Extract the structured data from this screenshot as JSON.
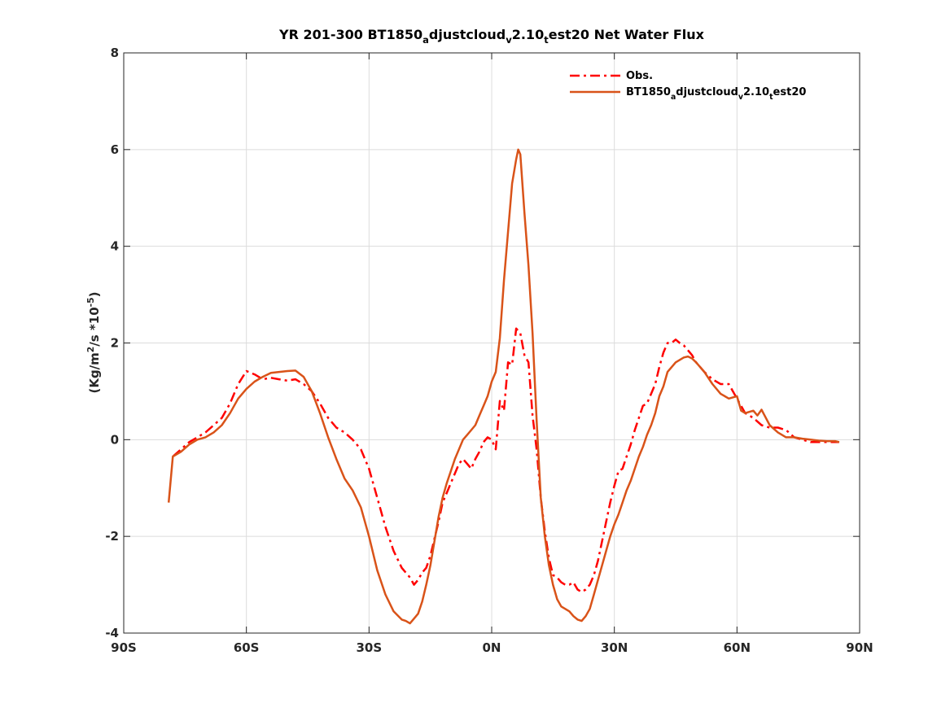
{
  "chart_data": {
    "type": "line",
    "title": {
      "prefix": "YR 201-300 BT1850",
      "parts": [
        {
          "text": "a",
          "sub": true
        },
        {
          "text": "djustcloud",
          "sub": false
        },
        {
          "text": "v",
          "sub": true
        },
        {
          "text": "2.10",
          "sub": false
        },
        {
          "text": "t",
          "sub": true
        },
        {
          "text": "est20  Net Water Flux",
          "sub": false
        }
      ]
    },
    "ylabel": {
      "parts": [
        {
          "text": "(Kg/m",
          "sup": false
        },
        {
          "text": "2",
          "sup": true
        },
        {
          "text": "/s *10",
          "sup": false
        },
        {
          "text": "-5",
          "sup": true
        },
        {
          "text": ")",
          "sup": false
        }
      ]
    },
    "xlim": [
      -90,
      90
    ],
    "ylim": [
      -4,
      8
    ],
    "x_ticks": [
      -90,
      -60,
      -30,
      0,
      30,
      60,
      90
    ],
    "x_tick_labels": [
      "90S",
      "60S",
      "30S",
      "0N",
      "30N",
      "60N",
      "90N"
    ],
    "y_ticks": [
      -4,
      -2,
      0,
      2,
      4,
      6,
      8
    ],
    "y_tick_labels": [
      "-4",
      "-2",
      "0",
      "2",
      "4",
      "6",
      "8"
    ],
    "grid": true,
    "legend_position": "top-right",
    "colors": {
      "obs": "#ff0000",
      "model": "#d95319",
      "axis": "#262626",
      "grid": "#dcdcdc"
    },
    "series": [
      {
        "name": "Obs.",
        "style": "dash-dot",
        "legend_parts": [
          {
            "text": "Obs.",
            "sub": false
          }
        ],
        "points": [
          [
            -78,
            -0.35
          ],
          [
            -76,
            -0.2
          ],
          [
            -74,
            -0.05
          ],
          [
            -72,
            0.05
          ],
          [
            -70,
            0.15
          ],
          [
            -68,
            0.3
          ],
          [
            -66,
            0.45
          ],
          [
            -64,
            0.75
          ],
          [
            -62,
            1.15
          ],
          [
            -60,
            1.42
          ],
          [
            -58,
            1.35
          ],
          [
            -56,
            1.25
          ],
          [
            -54,
            1.28
          ],
          [
            -52,
            1.25
          ],
          [
            -50,
            1.22
          ],
          [
            -48,
            1.25
          ],
          [
            -46,
            1.15
          ],
          [
            -44,
            1.0
          ],
          [
            -42,
            0.75
          ],
          [
            -40,
            0.45
          ],
          [
            -38,
            0.25
          ],
          [
            -36,
            0.15
          ],
          [
            -34,
            0.0
          ],
          [
            -32,
            -0.2
          ],
          [
            -30,
            -0.6
          ],
          [
            -28,
            -1.2
          ],
          [
            -26,
            -1.8
          ],
          [
            -24,
            -2.3
          ],
          [
            -22,
            -2.65
          ],
          [
            -20,
            -2.85
          ],
          [
            -19,
            -3.0
          ],
          [
            -18,
            -2.9
          ],
          [
            -17,
            -2.75
          ],
          [
            -16,
            -2.65
          ],
          [
            -15,
            -2.4
          ],
          [
            -14,
            -2.05
          ],
          [
            -13,
            -1.7
          ],
          [
            -12,
            -1.3
          ],
          [
            -11,
            -1.1
          ],
          [
            -10,
            -0.9
          ],
          [
            -9,
            -0.7
          ],
          [
            -8,
            -0.5
          ],
          [
            -7,
            -0.4
          ],
          [
            -6,
            -0.5
          ],
          [
            -5,
            -0.6
          ],
          [
            -4,
            -0.4
          ],
          [
            -3,
            -0.25
          ],
          [
            -2,
            -0.05
          ],
          [
            -1,
            0.05
          ],
          [
            0,
            0.0
          ],
          [
            1,
            -0.2
          ],
          [
            2,
            0.8
          ],
          [
            3,
            0.6
          ],
          [
            4,
            1.6
          ],
          [
            5,
            1.55
          ],
          [
            6,
            2.3
          ],
          [
            7,
            2.2
          ],
          [
            8,
            1.75
          ],
          [
            9,
            1.6
          ],
          [
            10,
            0.5
          ],
          [
            11,
            -0.2
          ],
          [
            12,
            -1.2
          ],
          [
            13,
            -1.9
          ],
          [
            14,
            -2.45
          ],
          [
            15,
            -2.8
          ],
          [
            16,
            -2.85
          ],
          [
            17,
            -2.95
          ],
          [
            18,
            -3.0
          ],
          [
            19,
            -3.0
          ],
          [
            20,
            -2.95
          ],
          [
            21,
            -3.1
          ],
          [
            22,
            -3.15
          ],
          [
            23,
            -3.1
          ],
          [
            24,
            -3.0
          ],
          [
            25,
            -2.8
          ],
          [
            26,
            -2.5
          ],
          [
            27,
            -2.1
          ],
          [
            28,
            -1.7
          ],
          [
            29,
            -1.3
          ],
          [
            30,
            -0.95
          ],
          [
            31,
            -0.65
          ],
          [
            32,
            -0.6
          ],
          [
            33,
            -0.35
          ],
          [
            34,
            -0.1
          ],
          [
            35,
            0.2
          ],
          [
            36,
            0.45
          ],
          [
            37,
            0.7
          ],
          [
            38,
            0.75
          ],
          [
            39,
            0.95
          ],
          [
            40,
            1.15
          ],
          [
            41,
            1.5
          ],
          [
            42,
            1.8
          ],
          [
            43,
            2.0
          ],
          [
            44,
            2.0
          ],
          [
            45,
            2.07
          ],
          [
            46,
            2.0
          ],
          [
            47,
            1.95
          ],
          [
            48,
            1.85
          ],
          [
            49,
            1.75
          ],
          [
            50,
            1.6
          ],
          [
            52,
            1.4
          ],
          [
            54,
            1.25
          ],
          [
            56,
            1.15
          ],
          [
            58,
            1.15
          ],
          [
            60,
            0.85
          ],
          [
            62,
            0.55
          ],
          [
            64,
            0.45
          ],
          [
            66,
            0.3
          ],
          [
            68,
            0.25
          ],
          [
            70,
            0.25
          ],
          [
            72,
            0.2
          ],
          [
            74,
            0.05
          ],
          [
            76,
            0.0
          ],
          [
            78,
            -0.05
          ],
          [
            80,
            -0.05
          ],
          [
            82,
            -0.05
          ],
          [
            84,
            -0.05
          ],
          [
            85,
            -0.05
          ]
        ]
      },
      {
        "name": "model",
        "style": "solid",
        "legend_parts": [
          {
            "text": "BT1850",
            "sub": false
          },
          {
            "text": "a",
            "sub": true
          },
          {
            "text": "djustcloud",
            "sub": false
          },
          {
            "text": "v",
            "sub": true
          },
          {
            "text": "2.10",
            "sub": false
          },
          {
            "text": "t",
            "sub": true
          },
          {
            "text": "est20",
            "sub": false
          }
        ],
        "points": [
          [
            -79,
            -1.3
          ],
          [
            -78,
            -0.35
          ],
          [
            -76,
            -0.25
          ],
          [
            -74,
            -0.1
          ],
          [
            -72,
            0.0
          ],
          [
            -70,
            0.05
          ],
          [
            -68,
            0.15
          ],
          [
            -66,
            0.3
          ],
          [
            -64,
            0.55
          ],
          [
            -62,
            0.85
          ],
          [
            -60,
            1.05
          ],
          [
            -58,
            1.2
          ],
          [
            -56,
            1.3
          ],
          [
            -54,
            1.38
          ],
          [
            -52,
            1.4
          ],
          [
            -50,
            1.42
          ],
          [
            -48,
            1.43
          ],
          [
            -46,
            1.3
          ],
          [
            -44,
            1.0
          ],
          [
            -42,
            0.55
          ],
          [
            -40,
            0.05
          ],
          [
            -38,
            -0.4
          ],
          [
            -36,
            -0.8
          ],
          [
            -34,
            -1.05
          ],
          [
            -32,
            -1.4
          ],
          [
            -30,
            -2.0
          ],
          [
            -28,
            -2.7
          ],
          [
            -26,
            -3.2
          ],
          [
            -24,
            -3.55
          ],
          [
            -22,
            -3.72
          ],
          [
            -21,
            -3.75
          ],
          [
            -20,
            -3.8
          ],
          [
            -19,
            -3.7
          ],
          [
            -18,
            -3.6
          ],
          [
            -17,
            -3.35
          ],
          [
            -16,
            -3.0
          ],
          [
            -15,
            -2.6
          ],
          [
            -14,
            -2.1
          ],
          [
            -13,
            -1.6
          ],
          [
            -12,
            -1.2
          ],
          [
            -11,
            -0.9
          ],
          [
            -10,
            -0.65
          ],
          [
            -9,
            -0.4
          ],
          [
            -8,
            -0.2
          ],
          [
            -7,
            0.0
          ],
          [
            -6,
            0.1
          ],
          [
            -5,
            0.2
          ],
          [
            -4,
            0.3
          ],
          [
            -3,
            0.5
          ],
          [
            -2,
            0.7
          ],
          [
            -1,
            0.9
          ],
          [
            0,
            1.2
          ],
          [
            1,
            1.4
          ],
          [
            2,
            2.1
          ],
          [
            3,
            3.3
          ],
          [
            4,
            4.3
          ],
          [
            5,
            5.3
          ],
          [
            6,
            5.8
          ],
          [
            6.5,
            6.0
          ],
          [
            7,
            5.9
          ],
          [
            8,
            4.7
          ],
          [
            9,
            3.6
          ],
          [
            10,
            2.2
          ],
          [
            11,
            0.4
          ],
          [
            12,
            -1.2
          ],
          [
            13,
            -2.0
          ],
          [
            14,
            -2.6
          ],
          [
            15,
            -3.0
          ],
          [
            16,
            -3.3
          ],
          [
            17,
            -3.45
          ],
          [
            18,
            -3.5
          ],
          [
            19,
            -3.55
          ],
          [
            20,
            -3.65
          ],
          [
            21,
            -3.72
          ],
          [
            22,
            -3.75
          ],
          [
            23,
            -3.65
          ],
          [
            24,
            -3.5
          ],
          [
            25,
            -3.2
          ],
          [
            26,
            -2.9
          ],
          [
            27,
            -2.6
          ],
          [
            28,
            -2.3
          ],
          [
            29,
            -2.0
          ],
          [
            30,
            -1.75
          ],
          [
            31,
            -1.55
          ],
          [
            32,
            -1.3
          ],
          [
            33,
            -1.05
          ],
          [
            34,
            -0.85
          ],
          [
            35,
            -0.6
          ],
          [
            36,
            -0.35
          ],
          [
            37,
            -0.15
          ],
          [
            38,
            0.1
          ],
          [
            39,
            0.3
          ],
          [
            40,
            0.55
          ],
          [
            41,
            0.9
          ],
          [
            42,
            1.1
          ],
          [
            43,
            1.4
          ],
          [
            44,
            1.5
          ],
          [
            45,
            1.6
          ],
          [
            46,
            1.65
          ],
          [
            47,
            1.7
          ],
          [
            48,
            1.72
          ],
          [
            49,
            1.68
          ],
          [
            50,
            1.6
          ],
          [
            52,
            1.4
          ],
          [
            54,
            1.15
          ],
          [
            56,
            0.95
          ],
          [
            58,
            0.85
          ],
          [
            60,
            0.9
          ],
          [
            61,
            0.6
          ],
          [
            62,
            0.55
          ],
          [
            64,
            0.6
          ],
          [
            65,
            0.5
          ],
          [
            66,
            0.62
          ],
          [
            68,
            0.3
          ],
          [
            70,
            0.15
          ],
          [
            72,
            0.05
          ],
          [
            74,
            0.05
          ],
          [
            76,
            0.02
          ],
          [
            78,
            0.0
          ],
          [
            80,
            -0.02
          ],
          [
            82,
            -0.03
          ],
          [
            84,
            -0.03
          ],
          [
            85,
            -0.05
          ]
        ]
      }
    ]
  }
}
